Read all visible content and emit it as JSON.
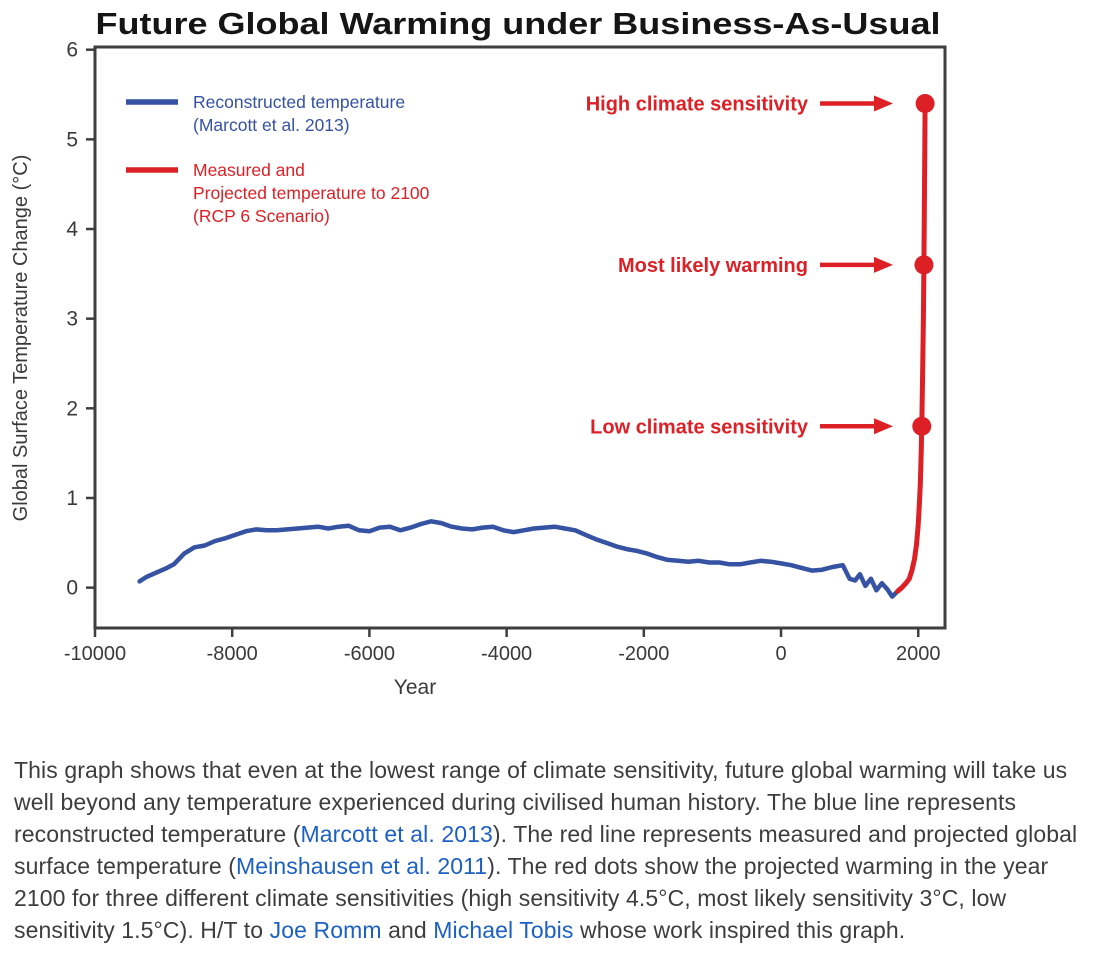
{
  "page": {
    "background": "#ffffff"
  },
  "chart_data": {
    "type": "line",
    "title": "Future Global Warming under Business-As-Usual",
    "xlabel": "Year",
    "ylabel": "Global Surface Temperature Change (°C)",
    "xlim": [
      -10000,
      2390
    ],
    "ylim": [
      -0.45,
      6.03
    ],
    "x_ticks": [
      -10000,
      -8000,
      -6000,
      -4000,
      -2000,
      0,
      2000
    ],
    "y_ticks": [
      0,
      1,
      2,
      3,
      4,
      5,
      6
    ],
    "grid": false,
    "legend_position": "inside-top-left",
    "colors": {
      "blue": "#3552a3",
      "red": "#dc2026",
      "axis": "#3e3e3e",
      "tick_text": "#3a3a3a",
      "title": "#151515"
    },
    "series": [
      {
        "name": "Reconstructed temperature (Marcott et al. 2013)",
        "color": "#3552a3",
        "points": [
          [
            -9350,
            0.07
          ],
          [
            -9250,
            0.12
          ],
          [
            -9100,
            0.17
          ],
          [
            -8950,
            0.22
          ],
          [
            -8850,
            0.26
          ],
          [
            -8700,
            0.38
          ],
          [
            -8550,
            0.45
          ],
          [
            -8400,
            0.47
          ],
          [
            -8250,
            0.52
          ],
          [
            -8100,
            0.55
          ],
          [
            -7950,
            0.59
          ],
          [
            -7800,
            0.63
          ],
          [
            -7650,
            0.65
          ],
          [
            -7500,
            0.64
          ],
          [
            -7350,
            0.64
          ],
          [
            -7200,
            0.65
          ],
          [
            -7050,
            0.66
          ],
          [
            -6900,
            0.67
          ],
          [
            -6750,
            0.68
          ],
          [
            -6600,
            0.66
          ],
          [
            -6450,
            0.68
          ],
          [
            -6300,
            0.69
          ],
          [
            -6150,
            0.64
          ],
          [
            -6000,
            0.63
          ],
          [
            -5850,
            0.67
          ],
          [
            -5700,
            0.68
          ],
          [
            -5550,
            0.64
          ],
          [
            -5400,
            0.67
          ],
          [
            -5250,
            0.71
          ],
          [
            -5100,
            0.74
          ],
          [
            -4950,
            0.72
          ],
          [
            -4800,
            0.68
          ],
          [
            -4650,
            0.66
          ],
          [
            -4500,
            0.65
          ],
          [
            -4350,
            0.67
          ],
          [
            -4200,
            0.68
          ],
          [
            -4050,
            0.64
          ],
          [
            -3900,
            0.62
          ],
          [
            -3750,
            0.64
          ],
          [
            -3600,
            0.66
          ],
          [
            -3450,
            0.67
          ],
          [
            -3300,
            0.68
          ],
          [
            -3150,
            0.66
          ],
          [
            -3000,
            0.64
          ],
          [
            -2850,
            0.59
          ],
          [
            -2700,
            0.54
          ],
          [
            -2550,
            0.5
          ],
          [
            -2400,
            0.46
          ],
          [
            -2250,
            0.43
          ],
          [
            -2100,
            0.41
          ],
          [
            -1950,
            0.38
          ],
          [
            -1800,
            0.34
          ],
          [
            -1650,
            0.31
          ],
          [
            -1500,
            0.3
          ],
          [
            -1350,
            0.29
          ],
          [
            -1200,
            0.3
          ],
          [
            -1050,
            0.28
          ],
          [
            -900,
            0.28
          ],
          [
            -750,
            0.26
          ],
          [
            -600,
            0.26
          ],
          [
            -450,
            0.28
          ],
          [
            -300,
            0.3
          ],
          [
            -150,
            0.29
          ],
          [
            0,
            0.27
          ],
          [
            150,
            0.25
          ],
          [
            300,
            0.22
          ],
          [
            450,
            0.19
          ],
          [
            600,
            0.2
          ],
          [
            750,
            0.23
          ],
          [
            900,
            0.25
          ],
          [
            1000,
            0.1
          ],
          [
            1080,
            0.08
          ],
          [
            1150,
            0.15
          ],
          [
            1230,
            0.02
          ],
          [
            1310,
            0.1
          ],
          [
            1390,
            -0.03
          ],
          [
            1470,
            0.05
          ],
          [
            1550,
            -0.02
          ],
          [
            1620,
            -0.1
          ],
          [
            1700,
            -0.04
          ]
        ]
      },
      {
        "name": "Measured and Projected temperature to 2100 (RCP 6 Scenario)",
        "color": "#dc2026",
        "points": [
          [
            1700,
            -0.04
          ],
          [
            1760,
            0.0
          ],
          [
            1820,
            0.05
          ],
          [
            1870,
            0.1
          ],
          [
            1910,
            0.2
          ],
          [
            1945,
            0.32
          ],
          [
            1975,
            0.48
          ],
          [
            2000,
            0.7
          ],
          [
            2013,
            0.88
          ],
          [
            2030,
            1.15
          ],
          [
            2045,
            1.55
          ],
          [
            2055,
            1.95
          ],
          [
            2065,
            2.45
          ],
          [
            2075,
            3.0
          ],
          [
            2083,
            3.6
          ],
          [
            2090,
            4.3
          ],
          [
            2096,
            4.9
          ],
          [
            2100,
            5.42
          ]
        ]
      }
    ],
    "legend": [
      {
        "color": "#3552a3",
        "lines": [
          "Reconstructed temperature",
          "(Marcott et al. 2013)"
        ]
      },
      {
        "color": "#dc2026",
        "lines": [
          "Measured and",
          "Projected temperature to 2100",
          "(RCP 6 Scenario)"
        ]
      }
    ],
    "annotations": [
      {
        "label": "High climate sensitivity",
        "year": 2100,
        "value": 5.4
      },
      {
        "label": "Most likely warming",
        "year": 2100,
        "value": 3.6
      },
      {
        "label": "Low climate sensitivity",
        "year": 2100,
        "value": 1.8
      }
    ]
  },
  "caption": {
    "text_color": "#3d3d3d",
    "link_color": "#1d60c4",
    "runs": [
      {
        "t": "This graph shows that even at the lowest range of climate sensitivity, future global warming will take us well beyond any temperature experienced during civilised human history. The blue line represents reconstructed temperature ("
      },
      {
        "t": "Marcott et al. 2013",
        "link": true
      },
      {
        "t": "). The red line represents measured and projected global surface temperature ("
      },
      {
        "t": "Meinshausen et al. 2011",
        "link": true
      },
      {
        "t": "). The red dots show the projected warming in the year 2100 for three different climate sensitivities (high sensitivity 4.5°C, most likely sensitivity 3°C, low sensitivity 1.5°C). H/T to "
      },
      {
        "t": "Joe Romm",
        "link": true
      },
      {
        "t": " and "
      },
      {
        "t": "Michael Tobis",
        "link": true
      },
      {
        "t": " whose work inspired this graph."
      }
    ]
  }
}
